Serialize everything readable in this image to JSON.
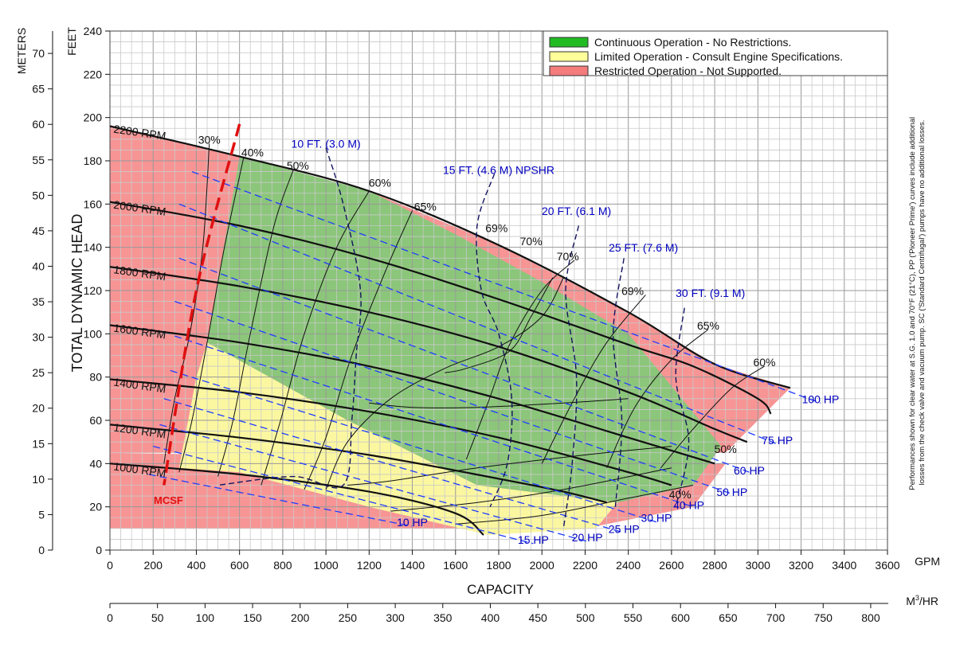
{
  "chart_data": {
    "type": "line",
    "xlabel": "CAPACITY",
    "x_unit_gpm": "GPM",
    "x2_unit_main": "M",
    "x2_unit_sup": "3",
    "x2_unit_tail": "/HR",
    "ylabel": "TOTAL DYNAMIC HEAD",
    "y_unit_feet": "FEET",
    "y_unit_meters": "METERS",
    "xlim": [
      0,
      3600
    ],
    "ylim": [
      0,
      240
    ],
    "grid": true,
    "x_ticks": [
      "0",
      "200",
      "400",
      "600",
      "800",
      "1000",
      "1200",
      "1400",
      "1600",
      "1800",
      "2000",
      "2200",
      "2400",
      "2600",
      "2800",
      "3000",
      "3200",
      "3400",
      "3600"
    ],
    "x2_ticks": [
      "0",
      "50",
      "100",
      "150",
      "200",
      "250",
      "300",
      "350",
      "400",
      "450",
      "500",
      "550",
      "600",
      "650",
      "700",
      "750",
      "800"
    ],
    "y_ticks": [
      "0",
      "20",
      "40",
      "60",
      "80",
      "100",
      "120",
      "140",
      "160",
      "180",
      "200",
      "220",
      "240"
    ],
    "y2_ticks": [
      "0",
      "5",
      "10",
      "15",
      "20",
      "25",
      "30",
      "35",
      "40",
      "45",
      "50",
      "55",
      "60",
      "65",
      "70"
    ],
    "legend": {
      "placement": "top-right",
      "entries": [
        {
          "label": "Continuous Operation - No Restrictions.",
          "color": "#22bb22"
        },
        {
          "label": "Limited Operation - Consult Engine Specifications.",
          "color": "#ffff99"
        },
        {
          "label": "Restricted Operation - Not Supported.",
          "color": "#f47c7c"
        }
      ]
    },
    "side_note_line1": "Performances shown for clear water at S.G. 1.0 and 70°F (21°C), PP ('Pioneer Prime') curves include additional",
    "side_note_line2": "losses from the check valve and vacuum pump. SC ('Standard Centrifugal') pumps have no additional losses.",
    "speed_curves": [
      {
        "name": "2200 RPM",
        "points": [
          [
            0,
            196
          ],
          [
            600,
            182
          ],
          [
            1200,
            166
          ],
          [
            1800,
            141
          ],
          [
            2400,
            110
          ],
          [
            2800,
            86
          ],
          [
            3150,
            75
          ]
        ]
      },
      {
        "name": "2000 RPM",
        "points": [
          [
            0,
            161
          ],
          [
            600,
            150
          ],
          [
            1200,
            135
          ],
          [
            1800,
            116
          ],
          [
            2400,
            95
          ],
          [
            2700,
            85
          ],
          [
            3000,
            70
          ],
          [
            3060,
            63
          ]
        ]
      },
      {
        "name": "1800 RPM",
        "points": [
          [
            0,
            131
          ],
          [
            600,
            122
          ],
          [
            1200,
            110
          ],
          [
            1800,
            94
          ],
          [
            2400,
            73
          ],
          [
            2800,
            56
          ],
          [
            2950,
            50
          ]
        ]
      },
      {
        "name": "1600 RPM",
        "points": [
          [
            0,
            104
          ],
          [
            600,
            96
          ],
          [
            1200,
            85
          ],
          [
            1800,
            70
          ],
          [
            2400,
            52
          ],
          [
            2800,
            40
          ]
        ]
      },
      {
        "name": "1400 RPM",
        "points": [
          [
            0,
            79
          ],
          [
            600,
            73
          ],
          [
            1200,
            64
          ],
          [
            1800,
            52
          ],
          [
            2400,
            36
          ],
          [
            2600,
            30
          ]
        ]
      },
      {
        "name": "1200 RPM",
        "points": [
          [
            0,
            58
          ],
          [
            600,
            52
          ],
          [
            1200,
            44
          ],
          [
            1800,
            33
          ],
          [
            2100,
            27
          ],
          [
            2300,
            22
          ]
        ]
      },
      {
        "name": "1000 RPM",
        "points": [
          [
            0,
            40
          ],
          [
            600,
            35
          ],
          [
            1200,
            27
          ],
          [
            1600,
            17
          ],
          [
            1730,
            7
          ]
        ]
      }
    ],
    "efficiency_labels": [
      {
        "label": "30%",
        "x": 460,
        "y": 188
      },
      {
        "label": "40%",
        "x": 660,
        "y": 182
      },
      {
        "label": "50%",
        "x": 870,
        "y": 176
      },
      {
        "label": "60%",
        "x": 1250,
        "y": 168
      },
      {
        "label": "65%",
        "x": 1460,
        "y": 157
      },
      {
        "label": "69%",
        "x": 1790,
        "y": 147
      },
      {
        "label": "70%",
        "x": 1950,
        "y": 141
      },
      {
        "label": "70%",
        "x": 2120,
        "y": 134
      },
      {
        "label": "69%",
        "x": 2420,
        "y": 118
      },
      {
        "label": "65%",
        "x": 2770,
        "y": 102
      },
      {
        "label": "60%",
        "x": 3030,
        "y": 85
      },
      {
        "label": "50%",
        "x": 2850,
        "y": 45
      },
      {
        "label": "40%",
        "x": 2640,
        "y": 24
      }
    ],
    "npshr_labels": [
      {
        "label": "10 FT. (3.0 M)",
        "x": 1000,
        "y": 186
      },
      {
        "label": "15 FT. (4.6 M) NPSHR",
        "x": 1800,
        "y": 174
      },
      {
        "label": "20 FT. (6.1 M)",
        "x": 2160,
        "y": 155
      },
      {
        "label": "25 FT. (7.6 M)",
        "x": 2470,
        "y": 138
      },
      {
        "label": "30 FT. (9.1 M)",
        "x": 2780,
        "y": 117
      }
    ],
    "horsepower_labels": [
      {
        "label": "100 HP",
        "x": 3290,
        "y": 68
      },
      {
        "label": "75 HP",
        "x": 3090,
        "y": 49
      },
      {
        "label": "60 HP",
        "x": 2960,
        "y": 35
      },
      {
        "label": "50 HP",
        "x": 2880,
        "y": 25
      },
      {
        "label": "40 HP",
        "x": 2680,
        "y": 19
      },
      {
        "label": "30 HP",
        "x": 2530,
        "y": 13
      },
      {
        "label": "25 HP",
        "x": 2380,
        "y": 8
      },
      {
        "label": "20 HP",
        "x": 2210,
        "y": 4
      },
      {
        "label": "15 HP",
        "x": 1960,
        "y": 3
      },
      {
        "label": "10 HP",
        "x": 1400,
        "y": 11
      }
    ],
    "mcsf_label": "MCSF"
  }
}
